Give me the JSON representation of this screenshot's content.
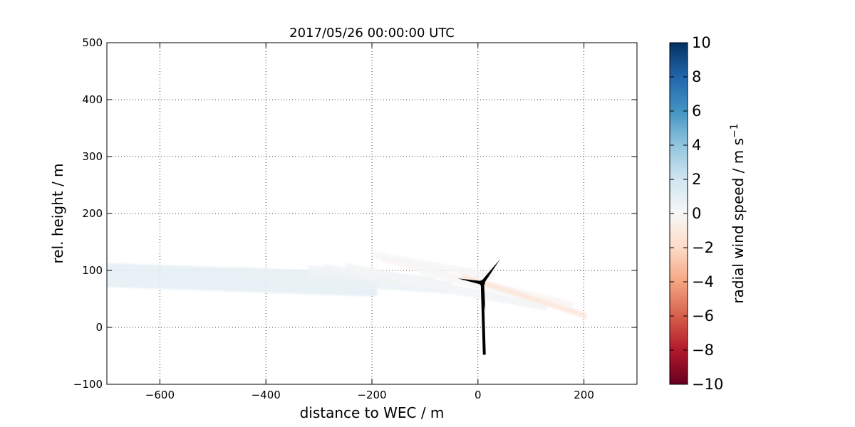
{
  "chart_data": {
    "type": "heatmap",
    "title": "2017/05/26 00:00:00 UTC",
    "xlabel": "distance to WEC / m",
    "ylabel": "rel. height / m",
    "xlim": [
      -700,
      300
    ],
    "ylim": [
      -100,
      500
    ],
    "x_ticks": [
      -600,
      -400,
      -200,
      0,
      200
    ],
    "y_ticks": [
      -100,
      0,
      100,
      200,
      300,
      400,
      500
    ],
    "x_tick_labels": [
      "−600",
      "−400",
      "−200",
      "0",
      "200"
    ],
    "y_tick_labels": [
      "−100",
      "0",
      "100",
      "200",
      "300",
      "400",
      "500"
    ],
    "grid": true,
    "colorbar": {
      "label": "radial wind speed / m s",
      "label_superscript": "−1",
      "range": [
        -10,
        10
      ],
      "ticks": [
        -10,
        -8,
        -6,
        -4,
        -2,
        0,
        2,
        4,
        6,
        8,
        10
      ],
      "tick_labels": [
        "−10",
        "−8",
        "−6",
        "−4",
        "−2",
        "0",
        "2",
        "4",
        "6",
        "8",
        "10"
      ],
      "colormap": "RdBu",
      "colors": [
        "#67001f",
        "#b2182b",
        "#d6604d",
        "#f4a582",
        "#fddbc7",
        "#f7f7f7",
        "#d1e5f0",
        "#92c5de",
        "#4393c3",
        "#2166ac",
        "#053061"
      ]
    },
    "scans": [
      {
        "x0": -700,
        "y0": 92,
        "x1": -190,
        "y1": 75,
        "width": 42,
        "speed": 1.0
      },
      {
        "x0": -450,
        "y0": 95,
        "x1": -50,
        "y1": 70,
        "width": 22,
        "speed": 0.7
      },
      {
        "x0": -320,
        "y0": 100,
        "x1": -80,
        "y1": 80,
        "width": 18,
        "speed": 0.5
      },
      {
        "x0": -290,
        "y0": 105,
        "x1": 110,
        "y1": 40,
        "width": 14,
        "speed": 0.3
      },
      {
        "x0": -250,
        "y0": 108,
        "x1": 130,
        "y1": 35,
        "width": 12,
        "speed": 0.2
      },
      {
        "x0": -200,
        "y0": 128,
        "x1": 30,
        "y1": 90,
        "width": 12,
        "speed": 0.1
      },
      {
        "x0": -180,
        "y0": 120,
        "x1": 180,
        "y1": 40,
        "width": 10,
        "speed": -0.2
      },
      {
        "x0": -110,
        "y0": 100,
        "x1": 120,
        "y1": 45,
        "width": 12,
        "speed": 0.0
      },
      {
        "x0": -30,
        "y0": 90,
        "x1": 205,
        "y1": 20,
        "width": 10,
        "speed": -1.2
      }
    ],
    "turbine": {
      "hub": [
        8,
        78
      ],
      "tower_base": [
        12,
        -48
      ],
      "blade_tips": [
        [
          42,
          120
        ],
        [
          -38,
          86
        ],
        [
          14,
          30
        ]
      ]
    }
  }
}
